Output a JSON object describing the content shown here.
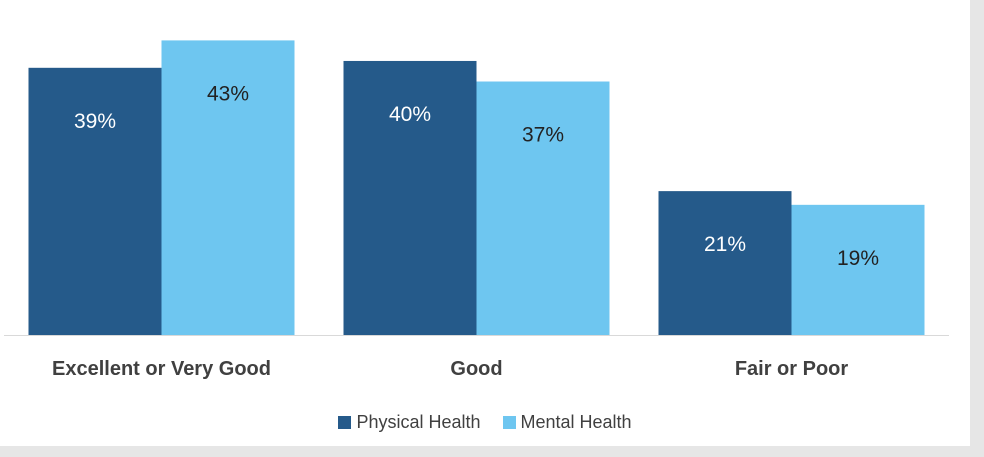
{
  "chart_data": {
    "type": "bar",
    "categories": [
      "Excellent or Very Good",
      "Good",
      "Fair or Poor"
    ],
    "series": [
      {
        "name": "Physical Health",
        "values": [
          39,
          40,
          21
        ],
        "labels": [
          "39%",
          "40%",
          "21%"
        ],
        "color": "#255a8a",
        "label_color": "#ffffff"
      },
      {
        "name": "Mental Health",
        "values": [
          43,
          37,
          19
        ],
        "labels": [
          "43%",
          "37%",
          "19%"
        ],
        "color": "#6ec6f0",
        "label_color": "#222222"
      }
    ],
    "ylim": [
      0,
      47
    ],
    "grid": false,
    "legend_position": "bottom"
  }
}
